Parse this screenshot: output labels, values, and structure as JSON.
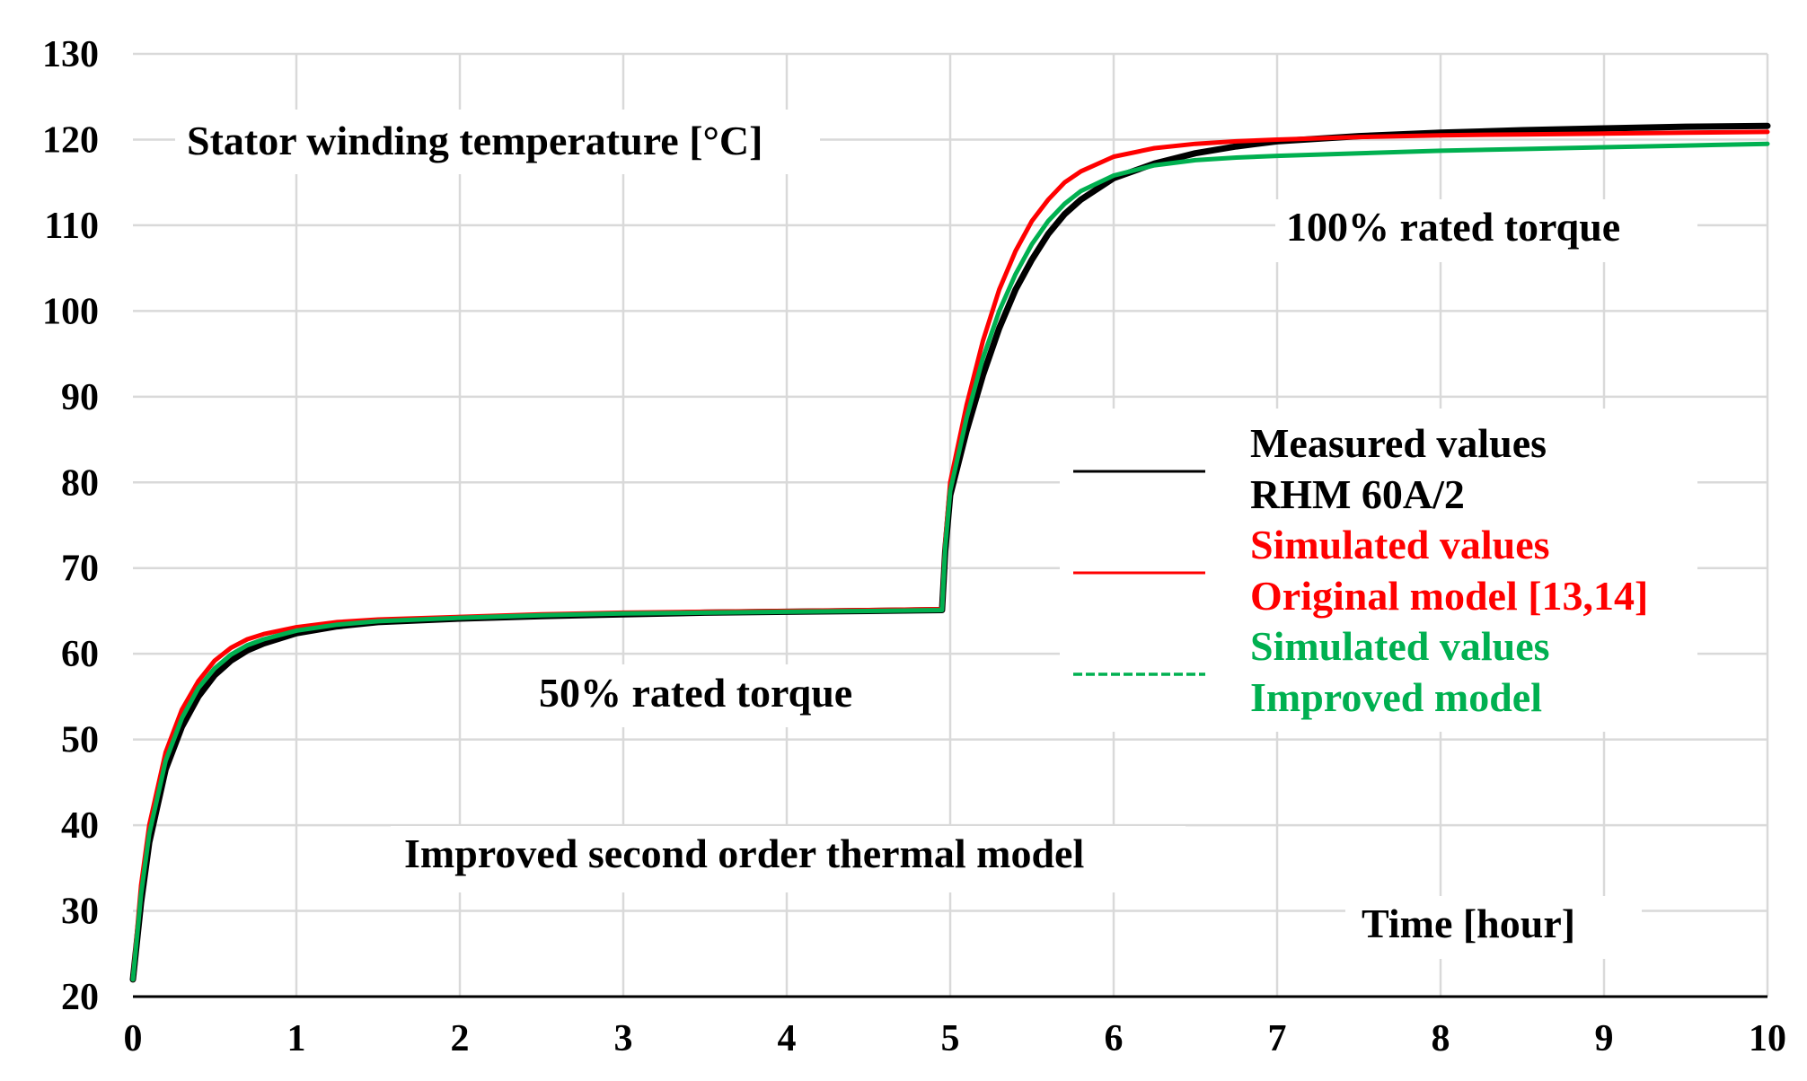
{
  "chart_data": {
    "type": "line",
    "title": "Improved second order thermal model",
    "ylabel": "Stator winding temperature [°C]",
    "xlabel": "Time [hour]",
    "xlim": [
      0,
      10
    ],
    "ylim": [
      20,
      130
    ],
    "x_ticks": [
      "0",
      "1",
      "2",
      "3",
      "4",
      "5",
      "6",
      "7",
      "8",
      "9",
      "10"
    ],
    "y_ticks": [
      "20",
      "30",
      "40",
      "50",
      "60",
      "70",
      "80",
      "90",
      "100",
      "110",
      "120",
      "130"
    ],
    "grid": true,
    "annotations": {
      "low_load": "50% rated torque",
      "high_load": "100% rated torque"
    },
    "legend": [
      {
        "lines": [
          "Measured values",
          "RHM 60A/2"
        ],
        "color": "#000000",
        "style": "solid"
      },
      {
        "lines": [
          "Simulated values",
          "Original model [13,14]"
        ],
        "color": "#ff0000",
        "style": "solid"
      },
      {
        "lines": [
          "Simulated values",
          "Improved model"
        ],
        "color": "#00b050",
        "style": "dashed"
      }
    ],
    "series": [
      {
        "name": "Measured values RHM 60A/2",
        "color": "#000000",
        "x": [
          0,
          0.05,
          0.1,
          0.2,
          0.3,
          0.4,
          0.5,
          0.6,
          0.7,
          0.8,
          1.0,
          1.25,
          1.5,
          2.0,
          2.5,
          3.0,
          3.5,
          4.0,
          4.5,
          4.95,
          4.97,
          5.0,
          5.1,
          5.2,
          5.3,
          5.4,
          5.5,
          5.6,
          5.7,
          5.8,
          6.0,
          6.25,
          6.5,
          6.75,
          7.0,
          7.5,
          8.0,
          8.5,
          9.0,
          9.5,
          10.0
        ],
        "y": [
          22,
          31,
          38,
          46.5,
          51.5,
          55,
          57.5,
          59.2,
          60.4,
          61.2,
          62.4,
          63.2,
          63.7,
          64.1,
          64.4,
          64.6,
          64.8,
          64.9,
          65.0,
          65.1,
          72,
          78.5,
          86,
          92.5,
          98,
          102.5,
          106,
          109,
          111.3,
          113,
          115.5,
          117.2,
          118.4,
          119.2,
          119.8,
          120.4,
          120.8,
          121.1,
          121.3,
          121.5,
          121.6
        ]
      },
      {
        "name": "Simulated values Original model [13,14]",
        "color": "#ff0000",
        "x": [
          0,
          0.05,
          0.1,
          0.2,
          0.3,
          0.4,
          0.5,
          0.6,
          0.7,
          0.8,
          1.0,
          1.25,
          1.5,
          2.0,
          2.5,
          3.0,
          3.5,
          4.0,
          4.5,
          4.95,
          4.97,
          5.0,
          5.1,
          5.2,
          5.3,
          5.4,
          5.5,
          5.6,
          5.7,
          5.8,
          6.0,
          6.25,
          6.5,
          6.75,
          7.0,
          7.5,
          8.0,
          8.5,
          9.0,
          9.5,
          10.0
        ],
        "y": [
          22,
          33,
          40,
          48.5,
          53.5,
          56.8,
          59.2,
          60.7,
          61.7,
          62.3,
          63.1,
          63.7,
          64.0,
          64.3,
          64.6,
          64.8,
          64.9,
          65.0,
          65.1,
          65.2,
          73,
          80,
          89,
          96.5,
          102.5,
          107,
          110.5,
          113,
          115,
          116.3,
          118,
          119,
          119.5,
          119.8,
          120.0,
          120.3,
          120.5,
          120.6,
          120.7,
          120.8,
          120.9
        ]
      },
      {
        "name": "Simulated values Improved model",
        "color": "#00b050",
        "x": [
          0,
          0.05,
          0.1,
          0.2,
          0.3,
          0.4,
          0.5,
          0.6,
          0.7,
          0.8,
          1.0,
          1.25,
          1.5,
          2.0,
          2.5,
          3.0,
          3.5,
          4.0,
          4.5,
          4.95,
          4.97,
          5.0,
          5.1,
          5.2,
          5.3,
          5.4,
          5.5,
          5.6,
          5.7,
          5.8,
          6.0,
          6.25,
          6.5,
          6.75,
          7.0,
          7.5,
          8.0,
          8.5,
          9.0,
          9.5,
          10.0
        ],
        "y": [
          22,
          32,
          39,
          47.5,
          52.5,
          56,
          58.3,
          59.9,
          61.0,
          61.7,
          62.7,
          63.4,
          63.8,
          64.2,
          64.5,
          64.7,
          64.8,
          64.9,
          65.0,
          65.1,
          72.5,
          79,
          87.5,
          94.5,
          100,
          104.3,
          107.8,
          110.5,
          112.5,
          114,
          115.8,
          117,
          117.6,
          117.9,
          118.1,
          118.4,
          118.7,
          118.9,
          119.1,
          119.3,
          119.5
        ]
      }
    ]
  }
}
